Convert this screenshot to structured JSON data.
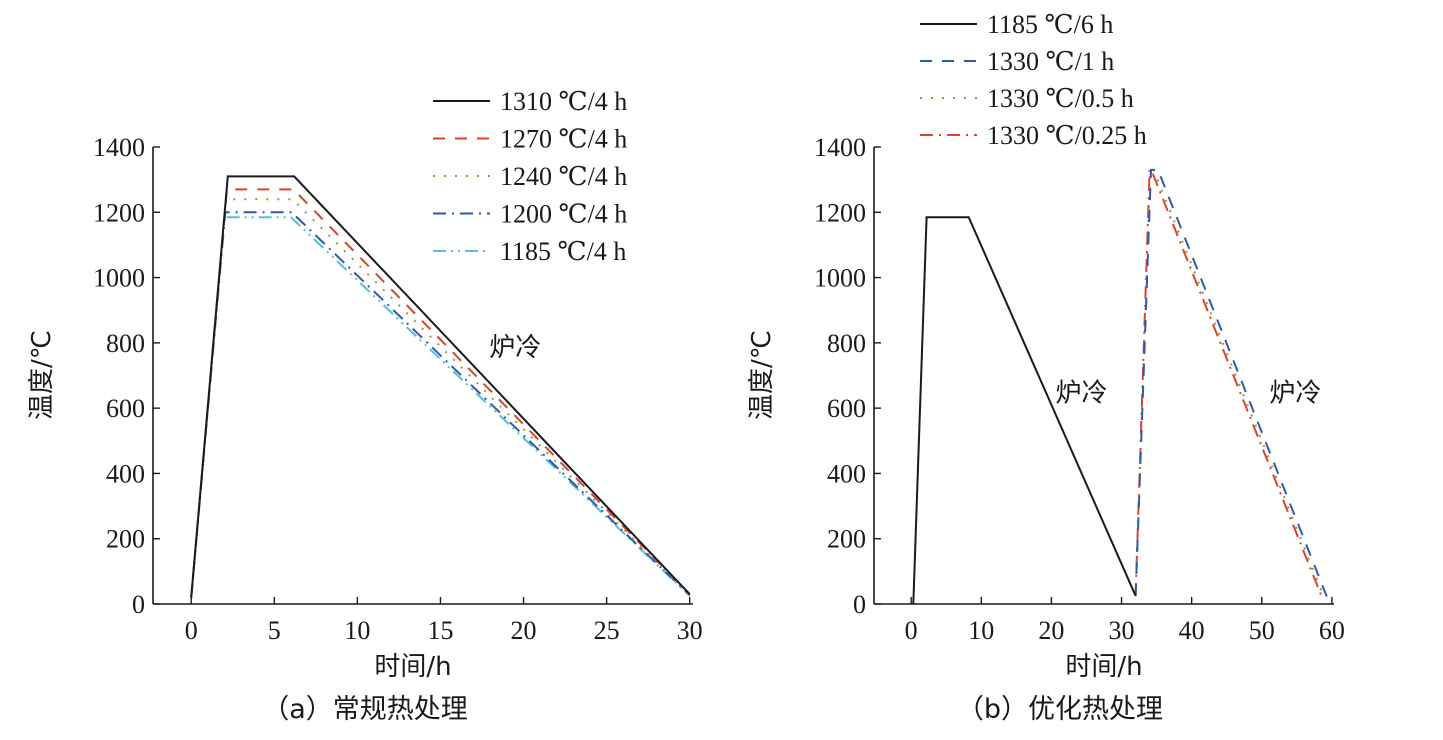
{
  "chart_data": [
    {
      "type": "line",
      "caption": "（a）常规热处理",
      "xlabel": "时间/h",
      "ylabel": "温度/℃",
      "xlim": [
        -2.3,
        30.2
      ],
      "ylim": [
        0,
        1400
      ],
      "xticks": [
        0,
        5,
        10,
        15,
        20,
        25,
        30
      ],
      "yticks": [
        0,
        200,
        400,
        600,
        800,
        1000,
        1200,
        1400
      ],
      "grid": false,
      "legend_position": "top-right",
      "annotations": [
        {
          "text": "炉冷",
          "x": 19.5,
          "y": 760
        }
      ],
      "series": [
        {
          "name": "1310 ℃/4 h",
          "color": "#1a1a1a",
          "dash": "solid",
          "x": [
            0,
            2.2,
            6.2,
            30
          ],
          "y": [
            20,
            1310,
            1310,
            30
          ]
        },
        {
          "name": "1270 ℃/4 h",
          "color": "#d9442b",
          "dash": "dash",
          "x": [
            0,
            2.15,
            6.15,
            30
          ],
          "y": [
            20,
            1270,
            1270,
            30
          ]
        },
        {
          "name": "1240 ℃/4 h",
          "color": "#9a9a3a",
          "dash": "dot",
          "x": [
            0,
            2.1,
            6.1,
            30
          ],
          "y": [
            20,
            1240,
            1240,
            28
          ]
        },
        {
          "name": "1200 ℃/4 h",
          "color": "#2f5aa8",
          "dash": "dashdot",
          "x": [
            0,
            2.05,
            6.05,
            30
          ],
          "y": [
            20,
            1200,
            1200,
            27
          ]
        },
        {
          "name": "1185 ℃/4 h",
          "color": "#52c0dc",
          "dash": "dashdotdot",
          "x": [
            0,
            2.0,
            6.0,
            30
          ],
          "y": [
            20,
            1185,
            1185,
            25
          ]
        }
      ]
    },
    {
      "type": "line",
      "caption": "（b）优化热处理",
      "xlabel": "时间/h",
      "ylabel": "温度/℃",
      "xlim": [
        -5.3,
        60.3
      ],
      "ylim": [
        0,
        1400
      ],
      "xticks": [
        0,
        10,
        20,
        30,
        40,
        50,
        60
      ],
      "yticks": [
        0,
        200,
        400,
        600,
        800,
        1000,
        1200,
        1400
      ],
      "grid": false,
      "legend_position": "top-left",
      "annotations": [
        {
          "text": "炉冷",
          "x": 24.3,
          "y": 620
        },
        {
          "text": "炉冷",
          "x": 54.8,
          "y": 620
        }
      ],
      "series": [
        {
          "name": "1185 ℃/6 h",
          "color": "#1a1a1a",
          "dash": "solid",
          "x": [
            0.3,
            2.2,
            8.2,
            32
          ],
          "y": [
            0,
            1185,
            1185,
            25
          ]
        },
        {
          "name": "1330 ℃/1 h",
          "color": "#2f5aa8",
          "dash": "dash",
          "x": [
            32,
            34.2,
            35.2,
            59.5
          ],
          "y": [
            25,
            1330,
            1330,
            10
          ]
        },
        {
          "name": "1330 ℃/0.5 h",
          "color": "#9a9a3a",
          "dash": "dot",
          "x": [
            32,
            34.1,
            34.6,
            58.9
          ],
          "y": [
            25,
            1330,
            1330,
            20
          ]
        },
        {
          "name": "1330 ℃/0.25 h",
          "color": "#d9442b",
          "dash": "dashdot",
          "x": [
            32,
            34.0,
            34.25,
            58.6
          ],
          "y": [
            25,
            1330,
            1330,
            20
          ]
        }
      ]
    }
  ]
}
